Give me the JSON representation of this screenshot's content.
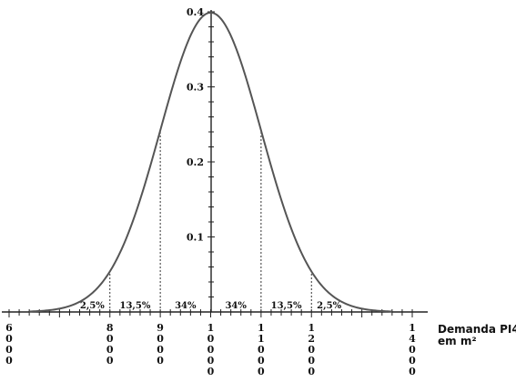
{
  "chart_data": {
    "type": "line",
    "title": "",
    "distribution": "normal",
    "mean": 10000,
    "std_dev": 1000,
    "xlim": [
      6000,
      14000
    ],
    "ylim": [
      0,
      0.4
    ],
    "x_ticks": [
      {
        "value": 6000,
        "label": "6000"
      },
      {
        "value": 8000,
        "label": "8000"
      },
      {
        "value": 9000,
        "label": "9000"
      },
      {
        "value": 10000,
        "label": "10000"
      },
      {
        "value": 11000,
        "label": "11000"
      },
      {
        "value": 12000,
        "label": "12000"
      },
      {
        "value": 14000,
        "label": "14000"
      }
    ],
    "y_ticks": [
      {
        "value": 0.1,
        "label": "0.1"
      },
      {
        "value": 0.2,
        "label": "0.2"
      },
      {
        "value": 0.3,
        "label": "0.3"
      },
      {
        "value": 0.4,
        "label": "0.4"
      }
    ],
    "xlabel": "Demanda PI4",
    "xlabel_unit": "em m²",
    "ylabel": "",
    "grid": false,
    "boundaries": [
      8000,
      9000,
      11000,
      12000
    ],
    "regions": [
      {
        "from": 7300,
        "to": 8000,
        "label": "2,5%"
      },
      {
        "from": 8000,
        "to": 9000,
        "label": "13,5%"
      },
      {
        "from": 9000,
        "to": 10000,
        "label": "34%"
      },
      {
        "from": 10000,
        "to": 11000,
        "label": "34%"
      },
      {
        "from": 11000,
        "to": 12000,
        "label": "13,5%"
      },
      {
        "from": 12000,
        "to": 12700,
        "label": "2,5%"
      }
    ],
    "colors": {
      "curve": "#555555",
      "axis": "#222222",
      "dashed": "#333333"
    }
  }
}
